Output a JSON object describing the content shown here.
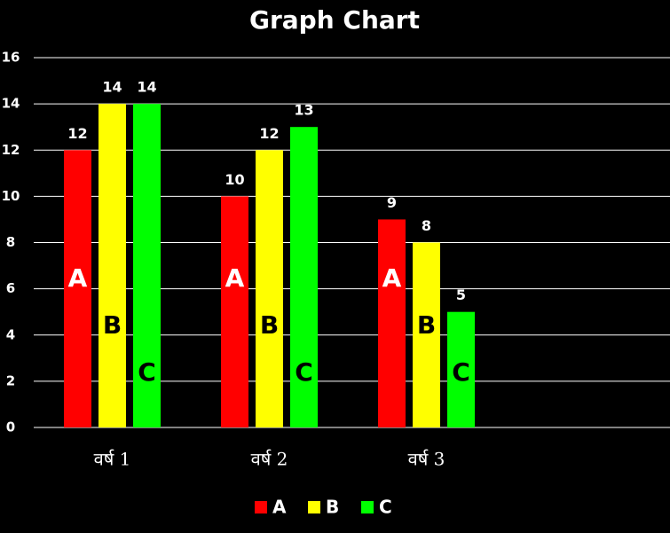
{
  "chart_data": {
    "type": "bar",
    "title": "Graph Chart",
    "categories": [
      "वर्ष 1",
      "वर्ष 2",
      "वर्ष 3",
      null
    ],
    "series": [
      {
        "name": "A",
        "color": "#ff0000",
        "values": [
          12,
          10,
          9,
          null
        ]
      },
      {
        "name": "B",
        "color": "#ffff00",
        "values": [
          14,
          12,
          8,
          null
        ]
      },
      {
        "name": "C",
        "color": "#00ff00",
        "values": [
          14,
          13,
          5,
          null
        ]
      }
    ],
    "ylim": [
      0,
      16
    ],
    "yticks": [
      0,
      2,
      4,
      6,
      8,
      10,
      12,
      14,
      16
    ],
    "grid": true,
    "legend": "bottom"
  }
}
